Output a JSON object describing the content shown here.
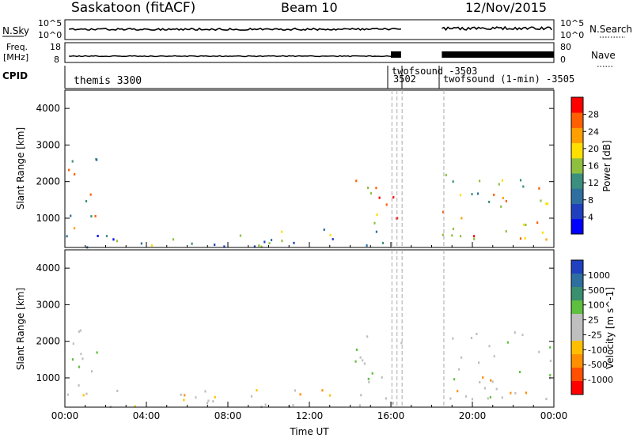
{
  "title": {
    "site": "Saskatoon (fitACF)",
    "beam": "Beam 10",
    "date": "12/Nov/2015"
  },
  "header": {
    "nsky_label": "N.Sky",
    "nsearch_label": "N.Search",
    "freq_label_1": "Freq.",
    "freq_label_2": "[MHz]",
    "nave_label": "Nave",
    "cpid_label": "CPID",
    "left_ticks_top": [
      "10^5",
      "10^0"
    ],
    "right_ticks_top": [
      "10^5",
      "10^0"
    ],
    "left_ticks_freq": [
      "18",
      "8"
    ],
    "right_ticks_nave": [
      "80",
      "0"
    ],
    "cpid_entries": [
      "themis 3300",
      "twofsound -3503",
      "3502",
      "twofsound (1-min) -3505"
    ]
  },
  "colors": {
    "power": [
      "#0000ff",
      "#1f3fbf",
      "#2f6f9f",
      "#3a8f7f",
      "#8fbf3f",
      "#ffdf00",
      "#ff9f00",
      "#ff5f00",
      "#ff0000"
    ],
    "velocity": [
      "#2040c0",
      "#2f6f9f",
      "#3a8f6f",
      "#5fbf3f",
      "#bfbfbf",
      "#bfbfbf",
      "#ffbf00",
      "#ff8f00",
      "#ff4f00",
      "#ff0000"
    ],
    "ground": "#bfbfbf"
  },
  "chart_data": [
    {
      "type": "heatmap",
      "title": "",
      "ylabel": "Slant Range [km]",
      "xlabel": "",
      "ylim": [
        200,
        4500
      ],
      "yticks": [
        "1000",
        "2000",
        "3000",
        "4000"
      ],
      "colorbar": {
        "label": "Power [dB]",
        "ticks": [
          "4",
          "8",
          "12",
          "16",
          "20",
          "24",
          "28"
        ],
        "range": [
          0,
          30
        ]
      },
      "regions": [
        {
          "t0": 0.0,
          "t1": 1.6,
          "r0": 500,
          "r1": 2800,
          "level": 0.55
        },
        {
          "t0": 0.3,
          "t1": 16.5,
          "r0": 200,
          "r1": 700,
          "level": 0.35
        },
        {
          "t0": 14.2,
          "t1": 16.5,
          "r0": 800,
          "r1": 2200,
          "level": 0.75
        },
        {
          "t0": 18.5,
          "t1": 24.0,
          "r0": 400,
          "r1": 2300,
          "level": 0.6
        }
      ]
    },
    {
      "type": "heatmap",
      "title": "",
      "ylabel": "Slant Range [km]",
      "xlabel": "Time UT",
      "xticks": [
        "00:00",
        "04:00",
        "08:00",
        "12:00",
        "16:00",
        "20:00",
        "00:00"
      ],
      "xrange_hours": [
        0,
        24
      ],
      "ylim": [
        200,
        4500
      ],
      "yticks": [
        "1000",
        "2000",
        "3000",
        "4000"
      ],
      "colorbar": {
        "label": "Velocity [m s^-1]",
        "ticks": [
          "1000",
          "500",
          "100",
          "25",
          "-25",
          "-100",
          "-500",
          "-1000"
        ]
      },
      "regions": [
        {
          "t0": 0.0,
          "t1": 1.6,
          "r0": 500,
          "r1": 2800,
          "level": 0.5
        },
        {
          "t0": 0.3,
          "t1": 16.5,
          "r0": 200,
          "r1": 700,
          "level": 0.7
        },
        {
          "t0": 14.2,
          "t1": 16.5,
          "r0": 800,
          "r1": 2200,
          "level": 0.5
        },
        {
          "t0": 18.5,
          "t1": 24.0,
          "r0": 400,
          "r1": 2300,
          "level": 0.5
        }
      ]
    }
  ]
}
